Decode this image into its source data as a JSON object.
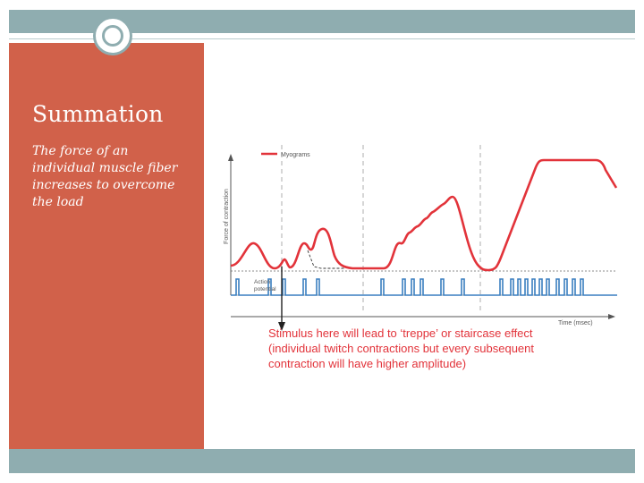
{
  "slide": {
    "title": "Summation",
    "subtitle": "The force of an individual muscle fiber increases to overcome the load"
  },
  "figure": {
    "ylabel": "Force of contraction",
    "xlabel": "Time (msec)",
    "legend": "Myograms",
    "action_label": [
      "Action",
      "potential"
    ],
    "caption_lines": [
      "Stimulus here will lead to ‘treppe’ or staircase effect",
      "(individual twitch contractions but every subsequent",
      "contraction will have higher amplitude)"
    ],
    "colors": {
      "myogram": "#e2333a",
      "action_potential": "#3a7fc0",
      "caption": "#e2333a",
      "axis": "#555555"
    }
  },
  "colors": {
    "accent": "#d1614a",
    "band": "#8fadb0"
  }
}
